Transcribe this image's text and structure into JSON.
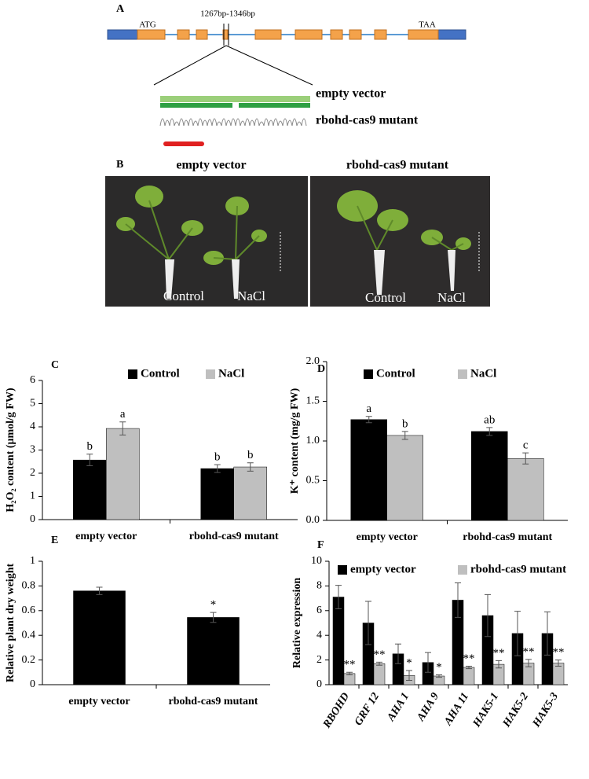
{
  "panel_a": {
    "label": "A",
    "start_codon": "ATG",
    "stop_codon": "TAA",
    "region": "1267bp-1346bp",
    "rows": [
      "empty vector",
      "rbohd-cas9 mutant"
    ]
  },
  "panel_b": {
    "label": "B",
    "columns": [
      "empty vector",
      "rbohd-cas9 mutant"
    ],
    "photo_labels": [
      [
        "Control",
        "NaCl"
      ],
      [
        "Control",
        "NaCl"
      ]
    ]
  },
  "chart_data": [
    {
      "type": "bar",
      "panel_label": "C",
      "y_label": "H₂O₂ content (μmol/g FW)",
      "categories": [
        "empty vector",
        "rbohd-cas9 mutant"
      ],
      "series": [
        {
          "name": "Control",
          "color": "#000000",
          "values": [
            2.57,
            2.2
          ],
          "errors": [
            0.25,
            0.17
          ],
          "significance": [
            "b",
            "b"
          ]
        },
        {
          "name": "NaCl",
          "color": "#bfbfbf",
          "values": [
            3.93,
            2.27
          ],
          "errors": [
            0.28,
            0.18
          ],
          "significance": [
            "a",
            "b"
          ]
        }
      ],
      "ylim": [
        0,
        6
      ],
      "yticks": [
        0,
        1,
        2,
        3,
        4,
        5,
        6
      ],
      "legend": "top"
    },
    {
      "type": "bar",
      "panel_label": "D",
      "y_label": "K⁺ content (mg/g FW)",
      "categories": [
        "empty vector",
        "rbohd-cas9 mutant"
      ],
      "series": [
        {
          "name": "Control",
          "color": "#000000",
          "values": [
            1.27,
            1.12
          ],
          "errors": [
            0.04,
            0.05
          ],
          "significance": [
            "a",
            "ab"
          ]
        },
        {
          "name": "NaCl",
          "color": "#bfbfbf",
          "values": [
            1.07,
            0.78
          ],
          "errors": [
            0.05,
            0.07
          ],
          "significance": [
            "b",
            "c"
          ]
        }
      ],
      "ylim": [
        0,
        2
      ],
      "yticks": [
        {
          "value": 0,
          "label": "0.0"
        },
        {
          "value": 0.5,
          "label": "0.5"
        },
        {
          "value": 1,
          "label": "1.0"
        },
        {
          "value": 1.5,
          "label": "1.5"
        },
        {
          "value": 2,
          "label": "2.0"
        }
      ],
      "legend": "top"
    },
    {
      "type": "bar",
      "panel_label": "E",
      "y_label": "Relative plant dry weight",
      "categories": [
        "empty vector",
        "rbohd-cas9 mutant"
      ],
      "color": "#000000",
      "values": [
        0.76,
        0.545
      ],
      "errors": [
        0.03,
        0.04
      ],
      "significance": [
        null,
        "*"
      ],
      "ylim": [
        0,
        1
      ],
      "yticks": [
        0,
        0.2,
        0.4,
        0.6,
        0.8,
        1
      ]
    },
    {
      "type": "bar",
      "panel_label": "F",
      "y_label": "Relative expression",
      "categories": [
        "RBOHD",
        "GRF 12",
        "AHA 1",
        "AHA 9",
        "AHA 11",
        "HAK5-1",
        "HAK5-2",
        "HAK5-3"
      ],
      "series": [
        {
          "name": "empty vector",
          "color": "#000000",
          "values": [
            7.1,
            5.0,
            2.5,
            1.8,
            6.85,
            5.6,
            4.15,
            4.15
          ],
          "errors": [
            0.95,
            1.75,
            0.8,
            0.8,
            1.4,
            1.7,
            1.8,
            1.75
          ]
        },
        {
          "name": "rbohd-cas9 mutant",
          "color": "#bfbfbf",
          "values": [
            0.9,
            1.7,
            0.75,
            0.7,
            1.4,
            1.65,
            1.75,
            1.75
          ],
          "errors": [
            0.1,
            0.12,
            0.4,
            0.1,
            0.1,
            0.3,
            0.3,
            0.25
          ],
          "significance": [
            "**",
            "**",
            "*",
            "*",
            "**",
            "**",
            "**",
            "**"
          ]
        }
      ],
      "ylim": [
        0,
        10
      ],
      "yticks": [
        0,
        2,
        4,
        6,
        8,
        10
      ],
      "legend": "top"
    }
  ]
}
